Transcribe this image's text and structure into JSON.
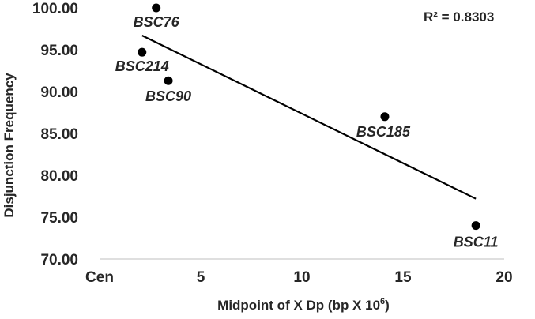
{
  "chart_data": {
    "type": "scatter",
    "title": "",
    "xlabel_main": "Midpoint of X Dp (bp X 10",
    "xlabel_sup": "6",
    "xlabel_end": ")",
    "ylabel": "Disjunction Frequency",
    "xlim": [
      0,
      20
    ],
    "ylim": [
      70,
      100
    ],
    "x_ticks": [
      {
        "value": 0,
        "label": "Cen"
      },
      {
        "value": 5,
        "label": "5"
      },
      {
        "value": 10,
        "label": "10"
      },
      {
        "value": 15,
        "label": "15"
      },
      {
        "value": 20,
        "label": "20"
      }
    ],
    "y_ticks": [
      {
        "value": 70,
        "label": "70.00"
      },
      {
        "value": 75,
        "label": "75.00"
      },
      {
        "value": 80,
        "label": "80.00"
      },
      {
        "value": 85,
        "label": "85.00"
      },
      {
        "value": 90,
        "label": "90.00"
      },
      {
        "value": 95,
        "label": "95.00"
      },
      {
        "value": 100,
        "label": "100.00"
      }
    ],
    "points": [
      {
        "label": "BSC76",
        "x": 2.8,
        "y": 100.0
      },
      {
        "label": "BSC214",
        "x": 2.1,
        "y": 94.7
      },
      {
        "label": "BSC90",
        "x": 3.4,
        "y": 91.3
      },
      {
        "label": "BSC185",
        "x": 14.1,
        "y": 87.0
      },
      {
        "label": "BSC11",
        "x": 18.6,
        "y": 74.0
      }
    ],
    "trendline": {
      "x": [
        2.1,
        18.6
      ],
      "y": [
        96.7,
        77.2
      ]
    },
    "r_squared": "R² = 0.8303",
    "grid": false,
    "marker_color": "#000000",
    "line_color": "#000000"
  }
}
